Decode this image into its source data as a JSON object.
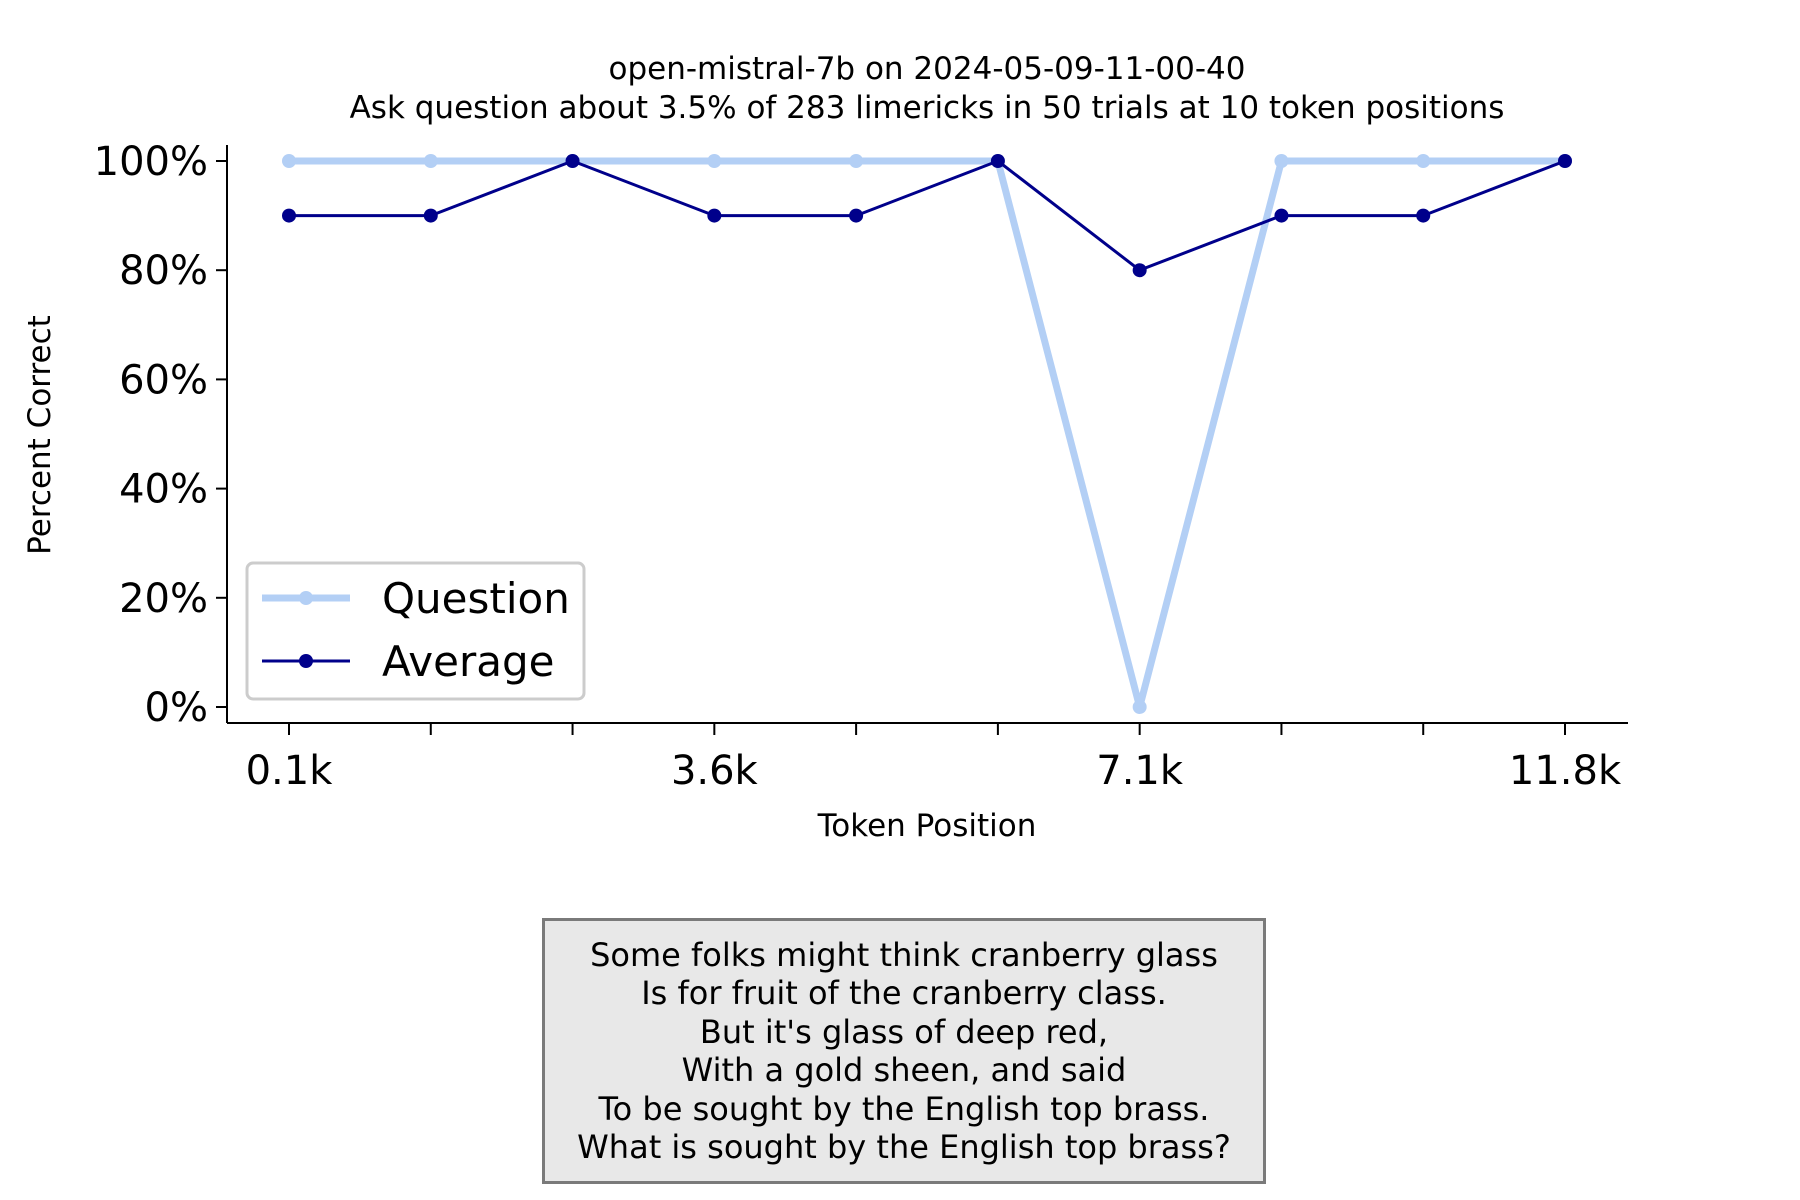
{
  "chart_data": {
    "type": "line",
    "title": "open-mistral-7b on 2024-05-09-11-00-40",
    "subtitle": "Ask question about 3.5% of 283 limericks in 50 trials at 10 token positions",
    "xlabel": "Token Position",
    "ylabel": "Percent Correct",
    "x_tick_labels": [
      "0.1k",
      "",
      "",
      "3.6k",
      "",
      "",
      "7.1k",
      "",
      "",
      "11.8k"
    ],
    "y_tick_labels": [
      "0%",
      "20%",
      "40%",
      "60%",
      "80%",
      "100%"
    ],
    "y_ticks": [
      0,
      20,
      40,
      60,
      80,
      100
    ],
    "ylim": [
      0,
      100
    ],
    "grid": false,
    "legend_position": "lower-left",
    "series": [
      {
        "name": "Question",
        "color": "#b3cff5",
        "values": [
          100,
          100,
          100,
          100,
          100,
          100,
          0,
          100,
          100,
          100
        ]
      },
      {
        "name": "Average",
        "color": "#00008b",
        "values": [
          90,
          90,
          100,
          90,
          90,
          100,
          80,
          90,
          90,
          100
        ]
      }
    ]
  },
  "annotation": {
    "lines": [
      "Some folks might think cranberry glass",
      "Is for fruit of the cranberry class.",
      "But it's glass of deep red,",
      "With a gold sheen, and said",
      "To be sought by the English top brass.",
      "What is sought by the English top brass?"
    ]
  }
}
